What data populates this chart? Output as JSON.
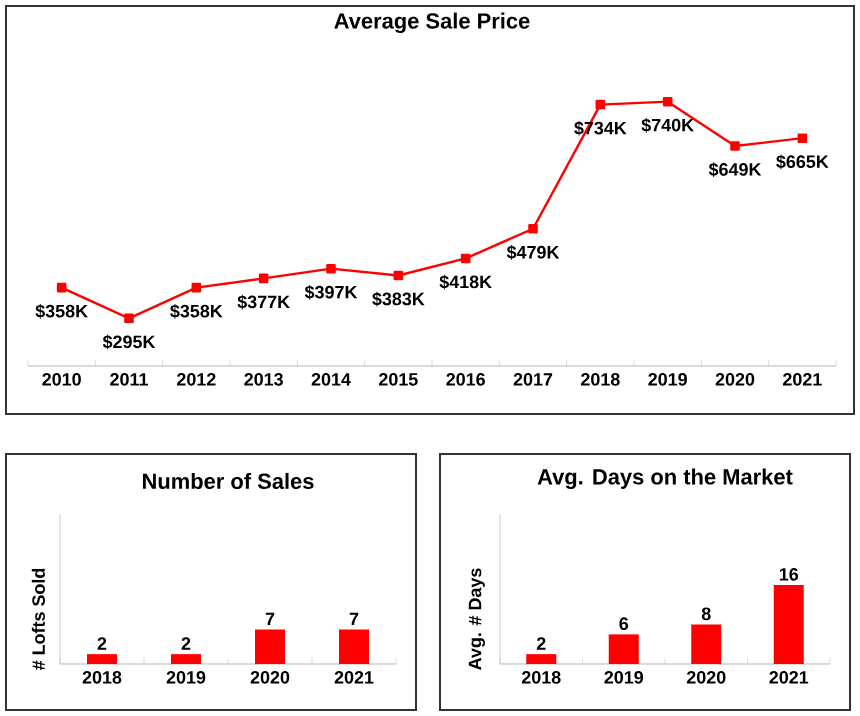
{
  "chart_data": [
    {
      "type": "line",
      "title": "Average Sale Price",
      "categories": [
        "2010",
        "2011",
        "2012",
        "2013",
        "2014",
        "2015",
        "2016",
        "2017",
        "2018",
        "2019",
        "2020",
        "2021"
      ],
      "values": [
        358,
        295,
        358,
        377,
        397,
        383,
        418,
        479,
        734,
        740,
        649,
        665
      ],
      "value_labels": [
        "$358K",
        "$295K",
        "$358K",
        "$377K",
        "$397K",
        "$383K",
        "$418K",
        "$479K",
        "$734K",
        "$740K",
        "$649K",
        "$665K"
      ],
      "color": "#ff0000",
      "marker": "square",
      "tick_labels": "x"
    },
    {
      "type": "bar",
      "title": "Number of Sales",
      "ylabel": "# Lofts Sold",
      "categories": [
        "2018",
        "2019",
        "2020",
        "2021"
      ],
      "values": [
        2,
        2,
        7,
        7
      ],
      "color": "#ff0000",
      "data_labels": true,
      "tick_labels": "x"
    },
    {
      "type": "bar",
      "title": "Avg. Days on the Market",
      "ylabel": "Avg. # Days",
      "categories": [
        "2018",
        "2019",
        "2020",
        "2021"
      ],
      "values": [
        2,
        6,
        8,
        16
      ],
      "color": "#ff0000",
      "data_labels": true,
      "tick_labels": "x"
    }
  ]
}
